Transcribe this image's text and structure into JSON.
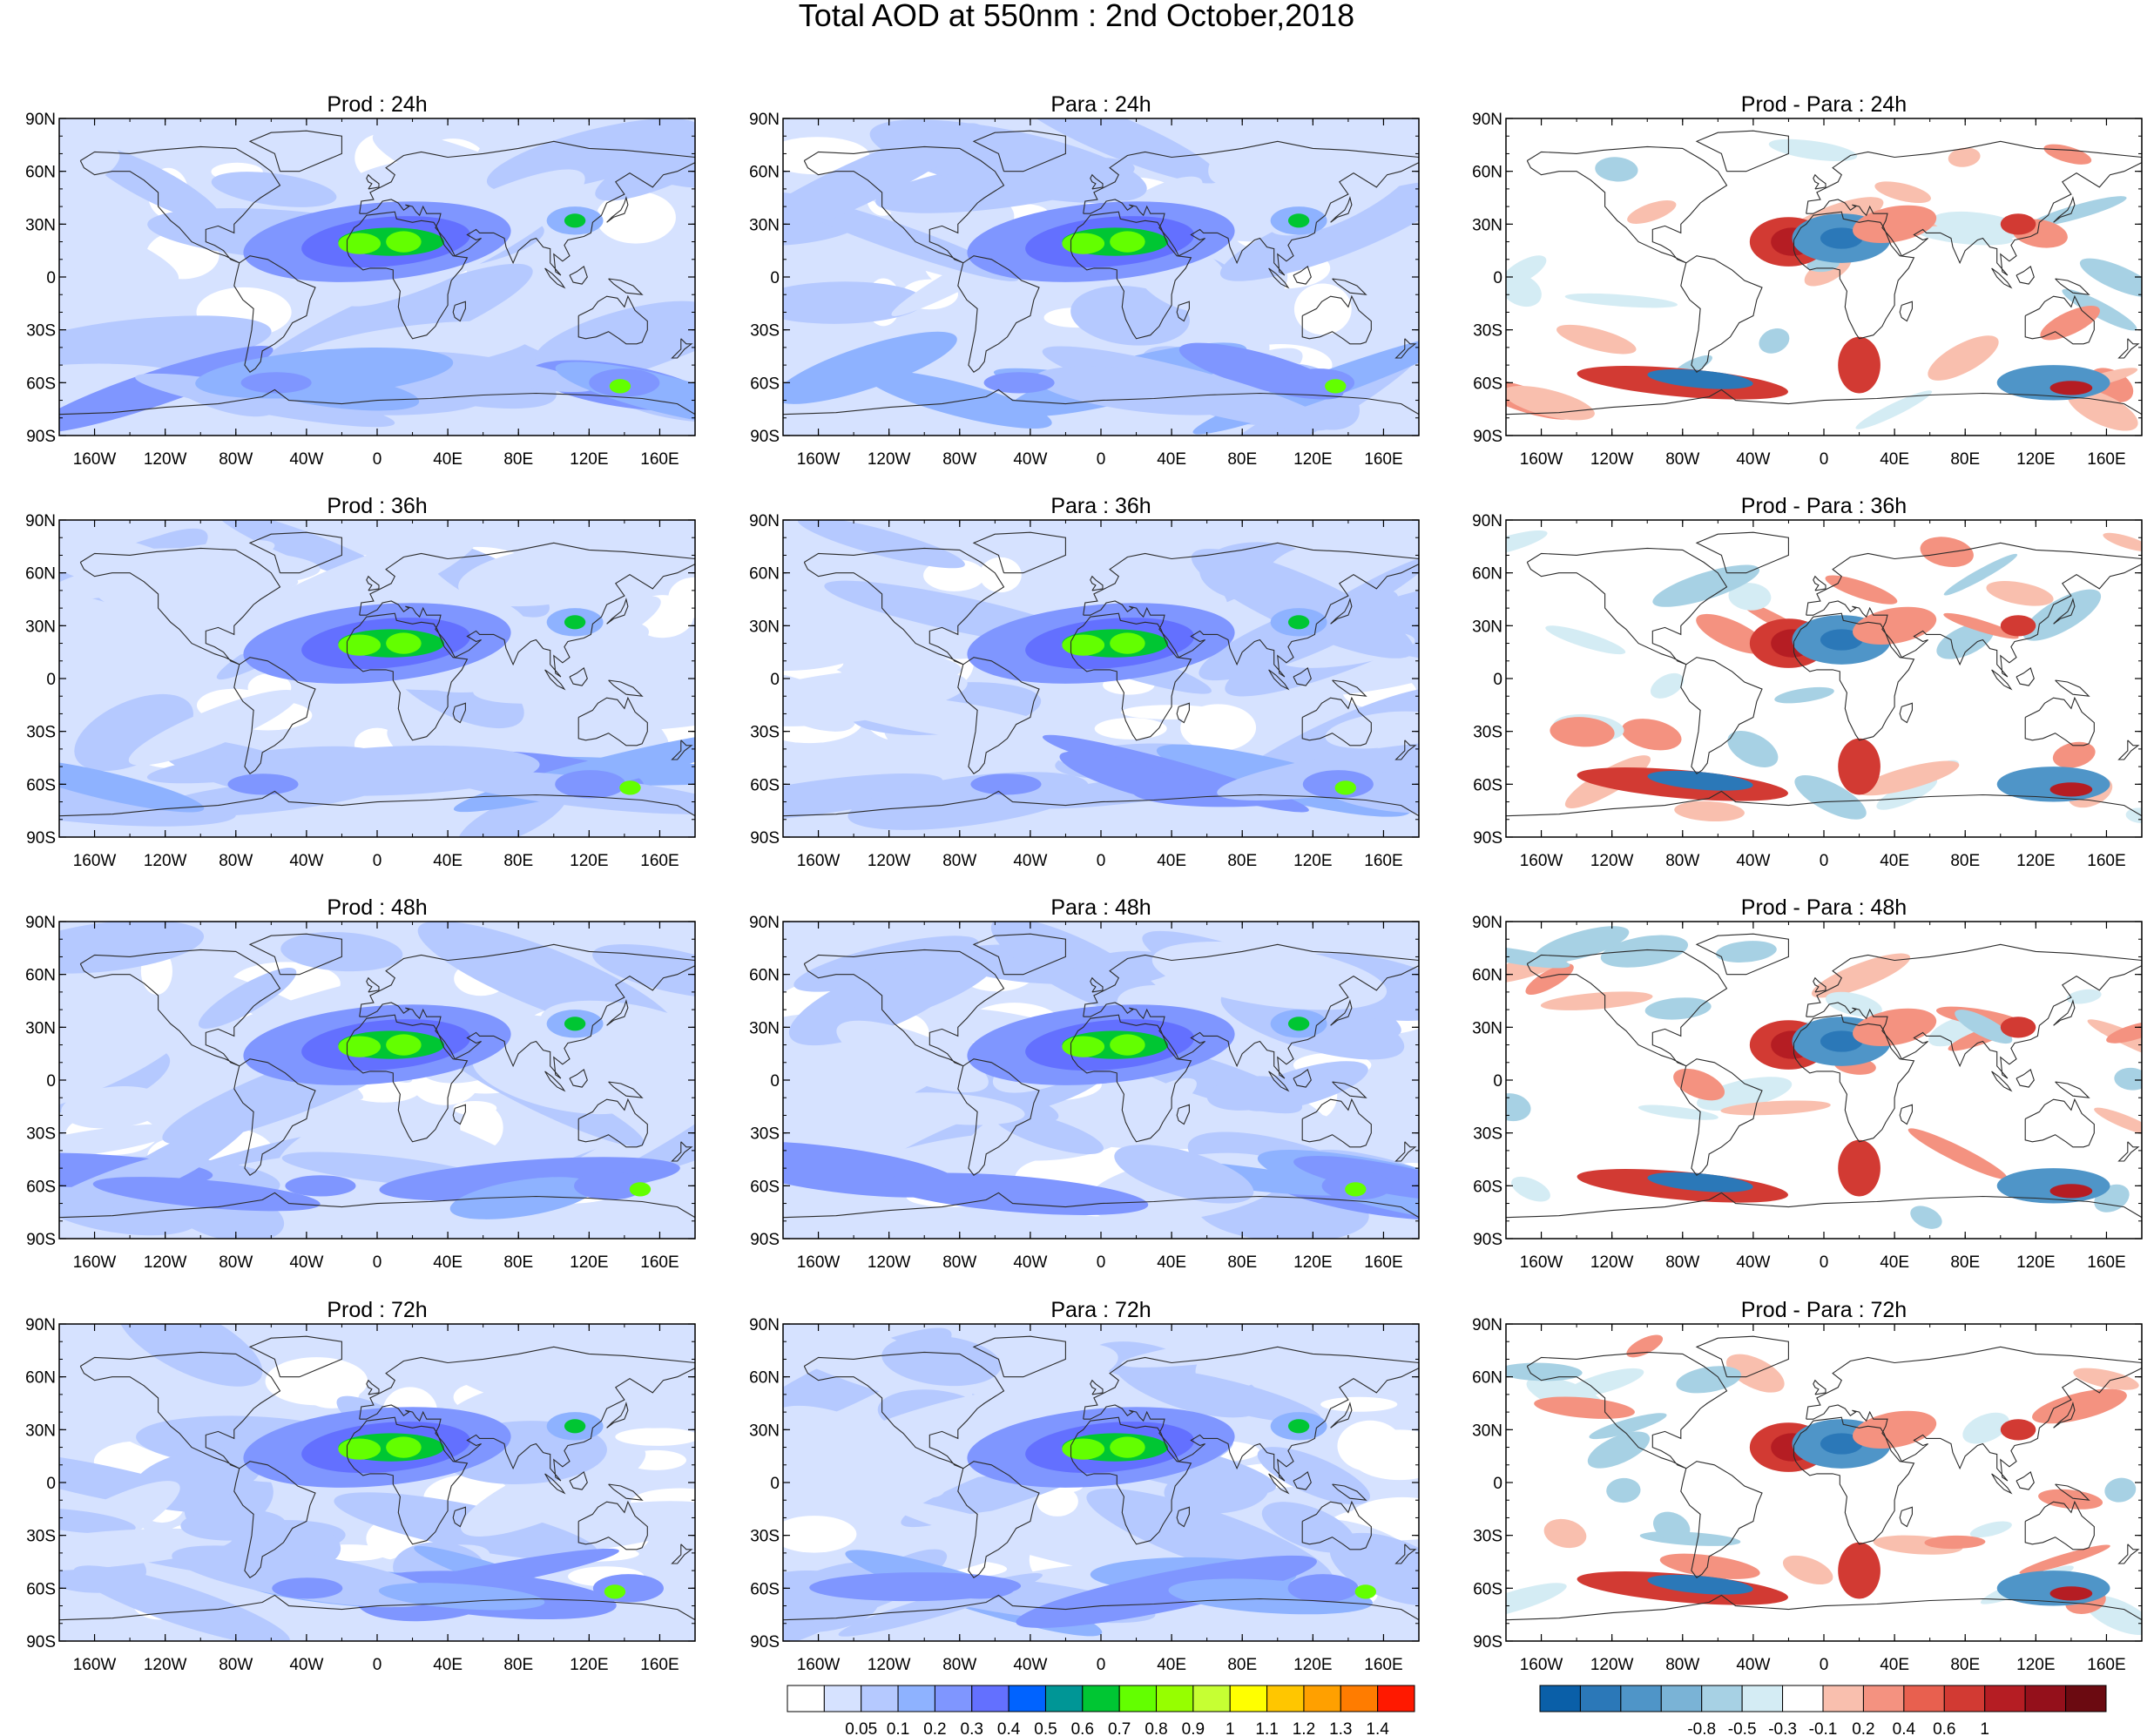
{
  "figure": {
    "title": "Total AOD at 550nm : 2nd October,2018"
  },
  "colors": {
    "frame": "#000000",
    "coastline": "#2b2b2b",
    "land_outline": "#3a3a3a"
  },
  "axes": {
    "lat_ticks": [
      "90N",
      "60N",
      "30N",
      "0",
      "30S",
      "60S",
      "90S"
    ],
    "lon_ticks": [
      "160W",
      "120W",
      "80W",
      "40W",
      "0",
      "40E",
      "80E",
      "120E",
      "160E"
    ]
  },
  "columns": [
    {
      "kind": "aod",
      "label": "Prod"
    },
    {
      "kind": "aod",
      "label": "Para"
    },
    {
      "kind": "diff",
      "label": "Prod - Para"
    }
  ],
  "panels": [
    [
      {
        "title": "Prod : 24h",
        "kind": "aod",
        "seed": 1
      },
      {
        "title": "Para : 24h",
        "kind": "aod",
        "seed": 2
      },
      {
        "title": "Prod - Para : 24h",
        "kind": "diff",
        "seed": 3
      }
    ],
    [
      {
        "title": "Prod : 36h",
        "kind": "aod",
        "seed": 4
      },
      {
        "title": "Para : 36h",
        "kind": "aod",
        "seed": 5
      },
      {
        "title": "Prod - Para : 36h",
        "kind": "diff",
        "seed": 6
      }
    ],
    [
      {
        "title": "Prod : 48h",
        "kind": "aod",
        "seed": 7
      },
      {
        "title": "Para : 48h",
        "kind": "aod",
        "seed": 8
      },
      {
        "title": "Prod - Para : 48h",
        "kind": "diff",
        "seed": 9
      }
    ],
    [
      {
        "title": "Prod : 72h",
        "kind": "aod",
        "seed": 10
      },
      {
        "title": "Para : 72h",
        "kind": "aod",
        "seed": 11
      },
      {
        "title": "Prod - Para : 72h",
        "kind": "diff",
        "seed": 12
      }
    ]
  ],
  "colorbars": {
    "aod": {
      "labels": [
        "0.05",
        "0.1",
        "0.2",
        "0.3",
        "0.4",
        "0.5",
        "0.6",
        "0.7",
        "0.8",
        "0.9",
        "1",
        "1.1",
        "1.2",
        "1.3",
        "1.4"
      ],
      "colors": [
        "#ffffff",
        "#d6e2ff",
        "#b5c9ff",
        "#8eb2ff",
        "#7f96ff",
        "#6370ff",
        "#0063ff",
        "#009696",
        "#00c633",
        "#63ff00",
        "#96ff00",
        "#c6ff33",
        "#ffff00",
        "#ffc600",
        "#ffa000",
        "#ff7c00",
        "#ff1900"
      ]
    },
    "diff": {
      "labels": [
        "-0.8",
        "-0.5",
        "-0.3",
        "-0.1",
        "0.2",
        "0.4",
        "0.6",
        "1"
      ],
      "colors": [
        "#0a5fa8",
        "#2b78b8",
        "#4f95c8",
        "#7ab3d6",
        "#a7d1e4",
        "#d4ecf4",
        "#ffffff",
        "#f9bfae",
        "#f49280",
        "#e8604f",
        "#d23a33",
        "#b51d23",
        "#94101b",
        "#6b0a11"
      ]
    }
  }
}
